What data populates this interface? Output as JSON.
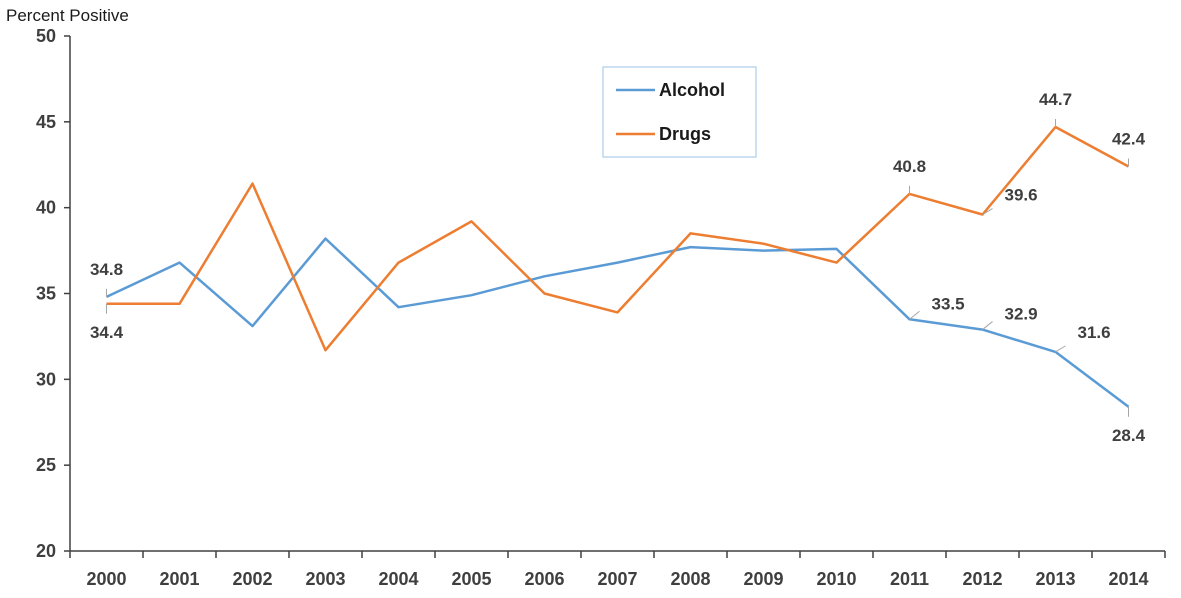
{
  "chart_data": {
    "type": "line",
    "ylabel": "Percent Positive",
    "xlabel": "",
    "title": "",
    "ylim": [
      20,
      50
    ],
    "yticks": [
      20,
      25,
      30,
      35,
      40,
      45,
      50
    ],
    "categories": [
      "2000",
      "2001",
      "2002",
      "2003",
      "2004",
      "2005",
      "2006",
      "2007",
      "2008",
      "2009",
      "2010",
      "2011",
      "2012",
      "2013",
      "2014"
    ],
    "series": [
      {
        "name": "Alcohol",
        "color": "#5b9bd5",
        "values": [
          34.8,
          36.8,
          33.1,
          38.2,
          34.2,
          34.9,
          36.0,
          36.8,
          37.7,
          37.5,
          37.6,
          33.5,
          32.9,
          31.6,
          28.4
        ]
      },
      {
        "name": "Drugs",
        "color": "#ed7d31",
        "values": [
          34.4,
          34.4,
          41.4,
          31.7,
          36.8,
          39.2,
          35.0,
          33.9,
          38.5,
          37.9,
          36.8,
          40.8,
          39.6,
          44.7,
          42.4
        ]
      }
    ],
    "data_labels": [
      {
        "series": "Alcohol",
        "category": "2000",
        "text": "34.8",
        "pos": "above"
      },
      {
        "series": "Drugs",
        "category": "2000",
        "text": "34.4",
        "pos": "below"
      },
      {
        "series": "Alcohol",
        "category": "2011",
        "text": "33.5",
        "pos": "upper-right"
      },
      {
        "series": "Alcohol",
        "category": "2012",
        "text": "32.9",
        "pos": "upper-right"
      },
      {
        "series": "Alcohol",
        "category": "2013",
        "text": "31.6",
        "pos": "lower-right"
      },
      {
        "series": "Alcohol",
        "category": "2014",
        "text": "28.4",
        "pos": "below"
      },
      {
        "series": "Drugs",
        "category": "2011",
        "text": "40.8",
        "pos": "above"
      },
      {
        "series": "Drugs",
        "category": "2012",
        "text": "39.6",
        "pos": "lower-right"
      },
      {
        "series": "Drugs",
        "category": "2013",
        "text": "44.7",
        "pos": "above"
      },
      {
        "series": "Drugs",
        "category": "2014",
        "text": "42.4",
        "pos": "above"
      }
    ],
    "legend": {
      "placement": "top-center",
      "entries": [
        "Alcohol",
        "Drugs"
      ]
    },
    "grid": false
  }
}
